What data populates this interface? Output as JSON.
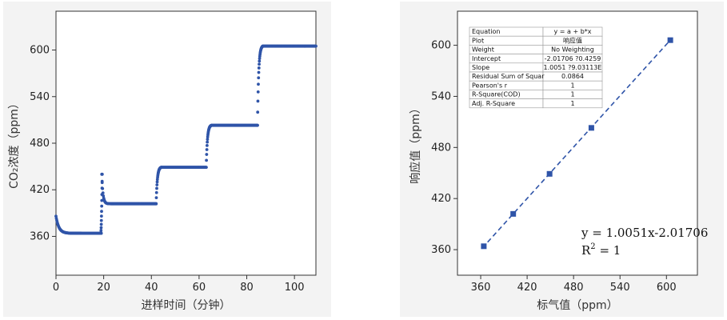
{
  "colors": {
    "marker": "#2f54a8",
    "line": "#2f54a8",
    "frame": "#333333",
    "panel_bg": "#f3f3f3",
    "plot_bg": "#ffffff"
  },
  "chart_data": [
    {
      "type": "scatter",
      "xlabel": "进样时间（分钟）",
      "ylabel": "CO₂浓度（ppm）",
      "xlim": [
        0,
        109
      ],
      "ylim": [
        310,
        650
      ],
      "xticks": [
        0,
        20,
        40,
        60,
        80,
        100
      ],
      "yticks": [
        360,
        420,
        480,
        540,
        600
      ],
      "grid": false,
      "series": [
        {
          "segments": [
            {
              "x_start": 0,
              "x_end": 19,
              "y_start": 386,
              "y_end": 364,
              "decay": 1.2
            },
            {
              "x_start": 19.2,
              "x_end": 42,
              "y_start": 440,
              "y_end": 402,
              "decay": 0.5,
              "rise_from": 364
            },
            {
              "x_start": 42,
              "x_end": 63,
              "y_start": 402,
              "y_end": 449,
              "decay": 0.5
            },
            {
              "x_start": 63,
              "x_end": 84.5,
              "y_start": 449,
              "y_end": 503,
              "decay": 0.5
            },
            {
              "x_start": 84.5,
              "x_end": 109,
              "y_start": 503,
              "y_end": 605,
              "decay": 0.9
            }
          ]
        }
      ]
    },
    {
      "type": "scatter",
      "xlabel": "标气值（ppm）",
      "ylabel": "响应值（ppm）",
      "xlim": [
        330,
        640
      ],
      "ylim": [
        330,
        640
      ],
      "xticks": [
        360,
        420,
        480,
        540,
        600
      ],
      "yticks": [
        360,
        420,
        480,
        540,
        600
      ],
      "grid": false,
      "series": [
        {
          "x": [
            364,
            402,
            449,
            503,
            605
          ],
          "y": [
            364,
            402,
            449,
            503,
            606
          ]
        }
      ],
      "fit_line": {
        "slope": 1.0051,
        "intercept": -2.01706,
        "x_range": [
          362,
          606
        ]
      },
      "annotation": {
        "equation": "y = 1.0051x-2.01706",
        "r2_label": "R",
        "r2_sup": "2",
        "r2_value": " = 1"
      },
      "fit_table": [
        [
          "Equation",
          "y = a + b*x"
        ],
        [
          "Plot",
          "响应值"
        ],
        [
          "Weight",
          "No Weighting"
        ],
        [
          "Intercept",
          "-2.01706 ?0.4259"
        ],
        [
          "Slope",
          "1.0051 ?9.03113E"
        ],
        [
          "Residual Sum of Squar",
          "0.0864"
        ],
        [
          "Pearson's r",
          "1"
        ],
        [
          "R-Square(COD)",
          "1"
        ],
        [
          "Adj. R-Square",
          "1"
        ]
      ]
    }
  ]
}
